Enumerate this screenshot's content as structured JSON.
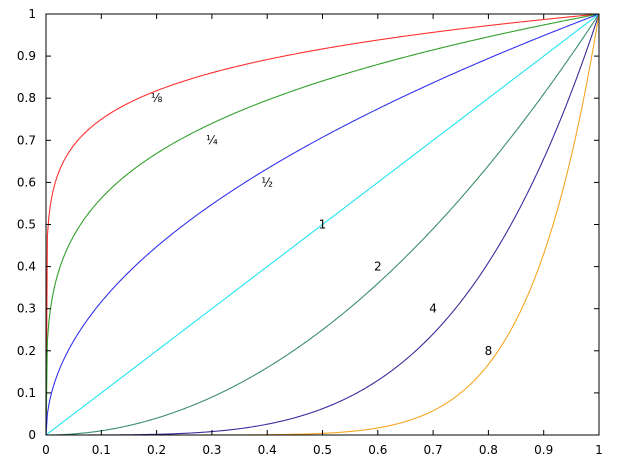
{
  "chart_data": {
    "type": "line",
    "title": "",
    "xlabel": "",
    "ylabel": "",
    "xlim": [
      0,
      1
    ],
    "ylim": [
      0,
      1
    ],
    "xticks": [
      "0",
      "0.1",
      "0.2",
      "0.3",
      "0.4",
      "0.5",
      "0.6",
      "0.7",
      "0.8",
      "0.9",
      "1"
    ],
    "yticks": [
      "0",
      "0.1",
      "0.2",
      "0.3",
      "0.4",
      "0.5",
      "0.6",
      "0.7",
      "0.8",
      "0.9",
      "1"
    ],
    "grid": false,
    "legend": "none",
    "x": [
      0,
      0.0001,
      0.001,
      0.005,
      0.01,
      0.02,
      0.05,
      0.1,
      0.15,
      0.2,
      0.25,
      0.3,
      0.35,
      0.4,
      0.45,
      0.5,
      0.55,
      0.6,
      0.65,
      0.7,
      0.75,
      0.8,
      0.85,
      0.9,
      0.95,
      1
    ],
    "series": [
      {
        "label": "⅛",
        "exponent": 0.125,
        "color": "#ff3030",
        "label_at": [
          0.2,
          0.8
        ],
        "values": [
          0,
          0.316,
          0.422,
          0.516,
          0.562,
          0.613,
          0.688,
          0.75,
          0.789,
          0.818,
          0.841,
          0.86,
          0.877,
          0.892,
          0.905,
          0.917,
          0.928,
          0.938,
          0.948,
          0.956,
          0.965,
          0.972,
          0.98,
          0.987,
          0.994,
          1
        ]
      },
      {
        "label": "¼",
        "exponent": 0.25,
        "color": "#33a02c",
        "label_at": [
          0.3,
          0.7
        ],
        "values": [
          0,
          0.1,
          0.178,
          0.266,
          0.316,
          0.376,
          0.473,
          0.562,
          0.622,
          0.669,
          0.707,
          0.74,
          0.769,
          0.795,
          0.819,
          0.841,
          0.861,
          0.88,
          0.898,
          0.915,
          0.931,
          0.946,
          0.96,
          0.974,
          0.987,
          1
        ]
      },
      {
        "label": "½",
        "exponent": 0.5,
        "color": "#3333ee",
        "label_at": [
          0.4,
          0.6
        ],
        "values": [
          0,
          0.01,
          0.032,
          0.071,
          0.1,
          0.141,
          0.224,
          0.316,
          0.387,
          0.447,
          0.5,
          0.548,
          0.592,
          0.632,
          0.671,
          0.707,
          0.742,
          0.775,
          0.806,
          0.837,
          0.866,
          0.894,
          0.922,
          0.949,
          0.975,
          1
        ]
      },
      {
        "label": "1",
        "exponent": 1,
        "color": "#22e5f0",
        "label_at": [
          0.5,
          0.5
        ],
        "values": [
          0,
          0.0001,
          0.001,
          0.005,
          0.01,
          0.02,
          0.05,
          0.1,
          0.15,
          0.2,
          0.25,
          0.3,
          0.35,
          0.4,
          0.45,
          0.5,
          0.55,
          0.6,
          0.65,
          0.7,
          0.75,
          0.8,
          0.85,
          0.9,
          0.95,
          1
        ]
      },
      {
        "label": "2",
        "exponent": 2,
        "color": "#3d8f6a",
        "label_at": [
          0.6,
          0.4
        ],
        "values": [
          0,
          0,
          0,
          0,
          0.0001,
          0.0004,
          0.0025,
          0.01,
          0.0225,
          0.04,
          0.0625,
          0.09,
          0.1225,
          0.16,
          0.2025,
          0.25,
          0.3025,
          0.36,
          0.4225,
          0.49,
          0.5625,
          0.64,
          0.7225,
          0.81,
          0.9025,
          1
        ]
      },
      {
        "label": "4",
        "exponent": 4,
        "color": "#3a2d9c",
        "label_at": [
          0.7,
          0.3
        ],
        "values": [
          0,
          0,
          0,
          0,
          0,
          0,
          0,
          0.0001,
          0.0005,
          0.0016,
          0.0039,
          0.0081,
          0.015,
          0.0256,
          0.041,
          0.0625,
          0.0915,
          0.1296,
          0.1785,
          0.2401,
          0.3164,
          0.4096,
          0.522,
          0.6561,
          0.8145,
          1
        ]
      },
      {
        "label": "8",
        "exponent": 8,
        "color": "#f5a623",
        "label_at": [
          0.8,
          0.2
        ],
        "values": [
          0,
          0,
          0,
          0,
          0,
          0,
          0,
          0,
          0,
          0,
          0,
          0.0001,
          0.0002,
          0.0007,
          0.0017,
          0.0039,
          0.0084,
          0.0168,
          0.0319,
          0.0576,
          0.1001,
          0.1678,
          0.2725,
          0.4305,
          0.6634,
          1
        ]
      }
    ]
  }
}
